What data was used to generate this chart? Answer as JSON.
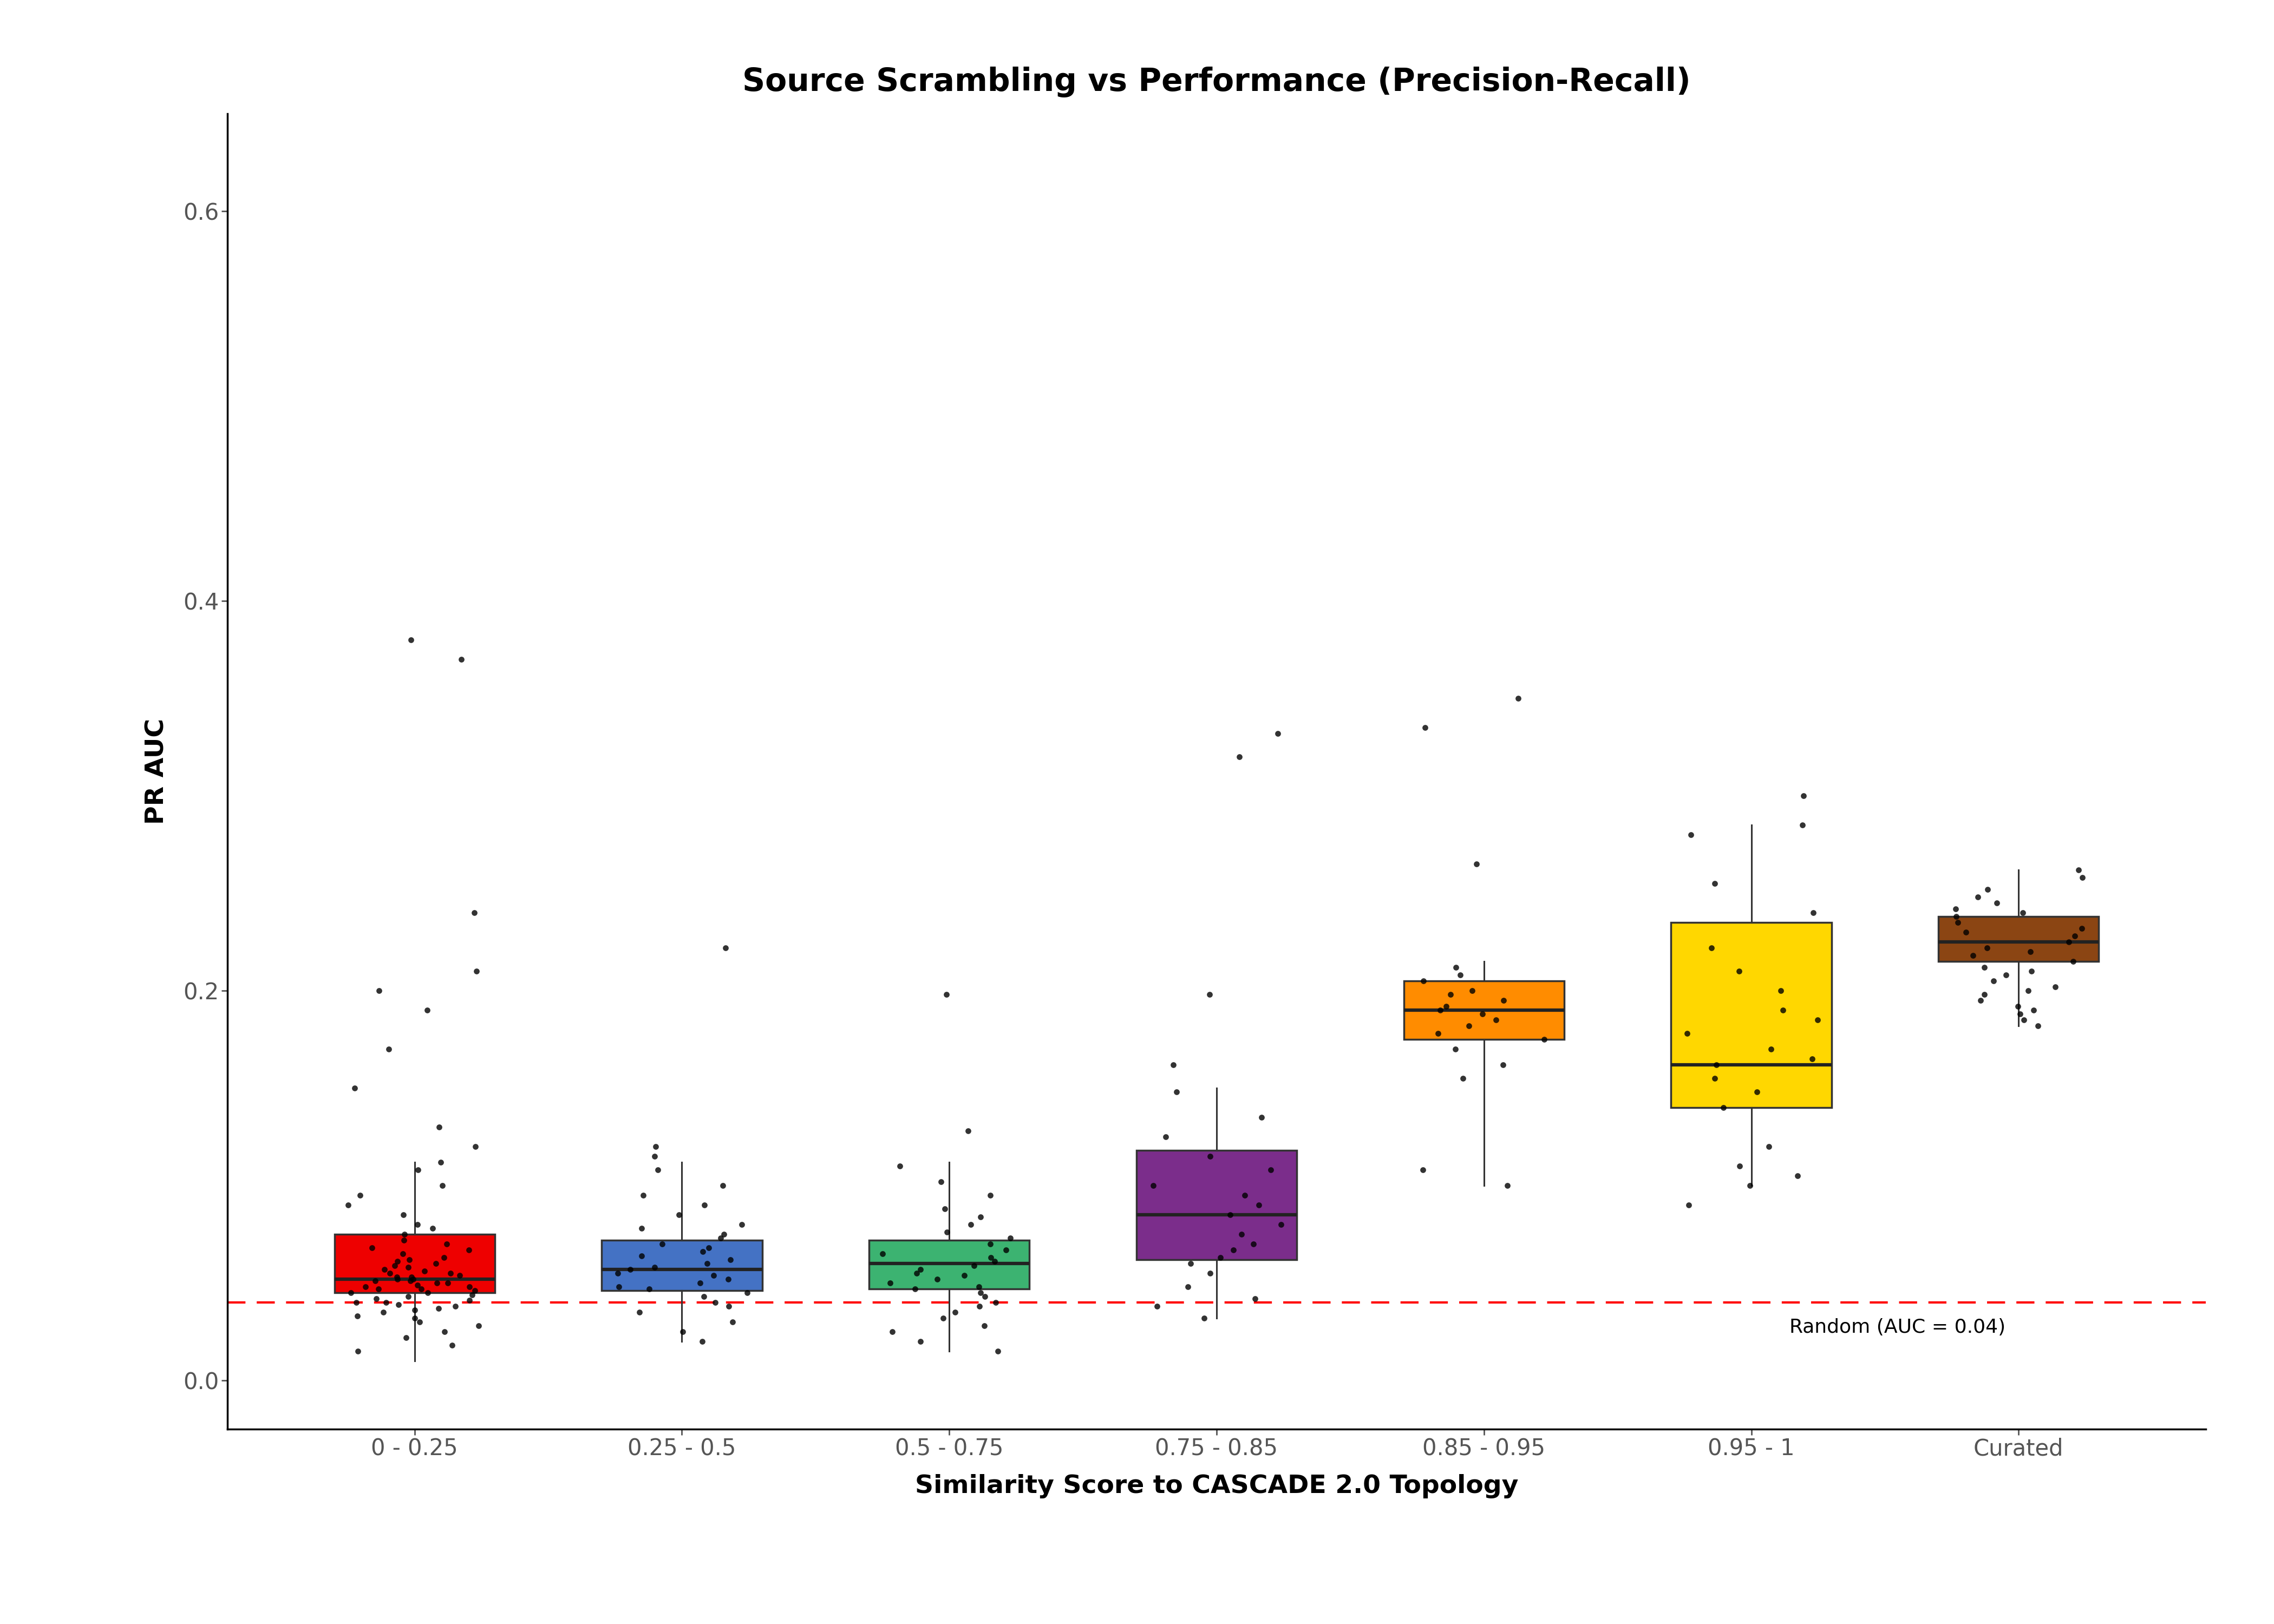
{
  "title": "Source Scrambling vs Performance (Precision-Recall)",
  "xlabel": "Similarity Score to CASCADE 2.0 Topology",
  "ylabel": "PR AUC",
  "ylim": [
    -0.025,
    0.65
  ],
  "yticks": [
    0.0,
    0.2,
    0.4,
    0.6
  ],
  "ytick_labels": [
    "0.0",
    "0.2",
    "0.4",
    "0.6"
  ],
  "random_line": 0.04,
  "random_label": "Random (AUC = 0.04)",
  "categories": [
    "0 - 0.25",
    "0.25 - 0.5",
    "0.5 - 0.75",
    "0.75 - 0.85",
    "0.85 - 0.95",
    "0.95 - 1",
    "Curated"
  ],
  "colors": [
    "#EE0000",
    "#4472C4",
    "#3CB371",
    "#7B2D8B",
    "#FF8C00",
    "#FFD700",
    "#8B4513"
  ],
  "box_data": {
    "0 - 0.25": {
      "q1": 0.045,
      "median": 0.052,
      "q3": 0.075,
      "whislo": 0.01,
      "whishi": 0.112
    },
    "0.25 - 0.5": {
      "q1": 0.046,
      "median": 0.057,
      "q3": 0.072,
      "whislo": 0.02,
      "whishi": 0.112
    },
    "0.5 - 0.75": {
      "q1": 0.047,
      "median": 0.06,
      "q3": 0.072,
      "whislo": 0.015,
      "whishi": 0.112
    },
    "0.75 - 0.85": {
      "q1": 0.062,
      "median": 0.085,
      "q3": 0.118,
      "whislo": 0.032,
      "whishi": 0.15
    },
    "0.85 - 0.95": {
      "q1": 0.175,
      "median": 0.19,
      "q3": 0.205,
      "whislo": 0.1,
      "whishi": 0.215
    },
    "0.95 - 1": {
      "q1": 0.14,
      "median": 0.162,
      "q3": 0.235,
      "whislo": 0.1,
      "whishi": 0.285
    },
    "Curated": {
      "q1": 0.215,
      "median": 0.225,
      "q3": 0.238,
      "whislo": 0.182,
      "whishi": 0.262
    }
  },
  "jitter_data": {
    "0 - 0.25": [
      0.015,
      0.018,
      0.022,
      0.025,
      0.028,
      0.03,
      0.032,
      0.033,
      0.035,
      0.036,
      0.037,
      0.038,
      0.039,
      0.04,
      0.04,
      0.041,
      0.042,
      0.043,
      0.044,
      0.045,
      0.045,
      0.046,
      0.047,
      0.047,
      0.048,
      0.048,
      0.049,
      0.05,
      0.05,
      0.051,
      0.051,
      0.052,
      0.052,
      0.053,
      0.053,
      0.054,
      0.055,
      0.055,
      0.056,
      0.057,
      0.058,
      0.059,
      0.06,
      0.061,
      0.062,
      0.063,
      0.065,
      0.067,
      0.068,
      0.07,
      0.072,
      0.075,
      0.078,
      0.08,
      0.085,
      0.09,
      0.095,
      0.1,
      0.108,
      0.112,
      0.12,
      0.13,
      0.15,
      0.17,
      0.19,
      0.2,
      0.21,
      0.24,
      0.37,
      0.38
    ],
    "0.25 - 0.5": [
      0.02,
      0.025,
      0.03,
      0.035,
      0.038,
      0.04,
      0.043,
      0.045,
      0.047,
      0.048,
      0.05,
      0.052,
      0.054,
      0.055,
      0.057,
      0.058,
      0.06,
      0.062,
      0.064,
      0.066,
      0.068,
      0.07,
      0.073,
      0.075,
      0.078,
      0.08,
      0.085,
      0.09,
      0.095,
      0.1,
      0.108,
      0.115,
      0.12,
      0.222
    ],
    "0.5 - 0.75": [
      0.015,
      0.02,
      0.025,
      0.028,
      0.032,
      0.035,
      0.038,
      0.04,
      0.043,
      0.045,
      0.047,
      0.048,
      0.05,
      0.052,
      0.054,
      0.055,
      0.057,
      0.059,
      0.061,
      0.063,
      0.065,
      0.067,
      0.07,
      0.073,
      0.076,
      0.08,
      0.084,
      0.088,
      0.095,
      0.102,
      0.11,
      0.128,
      0.198
    ],
    "0.75 - 0.85": [
      0.032,
      0.038,
      0.042,
      0.048,
      0.055,
      0.06,
      0.063,
      0.067,
      0.07,
      0.075,
      0.08,
      0.085,
      0.09,
      0.095,
      0.1,
      0.108,
      0.115,
      0.125,
      0.135,
      0.148,
      0.162,
      0.198,
      0.32,
      0.332
    ],
    "0.85 - 0.95": [
      0.1,
      0.108,
      0.155,
      0.162,
      0.17,
      0.175,
      0.178,
      0.182,
      0.185,
      0.188,
      0.19,
      0.192,
      0.195,
      0.198,
      0.2,
      0.205,
      0.208,
      0.212,
      0.265,
      0.335,
      0.35
    ],
    "0.95 - 1": [
      0.09,
      0.1,
      0.105,
      0.11,
      0.12,
      0.14,
      0.148,
      0.155,
      0.162,
      0.165,
      0.17,
      0.178,
      0.185,
      0.19,
      0.2,
      0.21,
      0.222,
      0.24,
      0.255,
      0.28,
      0.285,
      0.3
    ],
    "Curated": [
      0.182,
      0.185,
      0.188,
      0.19,
      0.192,
      0.195,
      0.198,
      0.2,
      0.202,
      0.205,
      0.208,
      0.21,
      0.212,
      0.215,
      0.218,
      0.22,
      0.222,
      0.225,
      0.228,
      0.23,
      0.232,
      0.235,
      0.238,
      0.24,
      0.242,
      0.245,
      0.248,
      0.252,
      0.258,
      0.262
    ]
  },
  "background_color": "#FFFFFF",
  "title_fontsize": 42,
  "axis_label_fontsize": 34,
  "tick_fontsize": 30,
  "annotation_fontsize": 26,
  "box_width": 0.6,
  "point_size": 60,
  "jitter_spread": 0.25
}
